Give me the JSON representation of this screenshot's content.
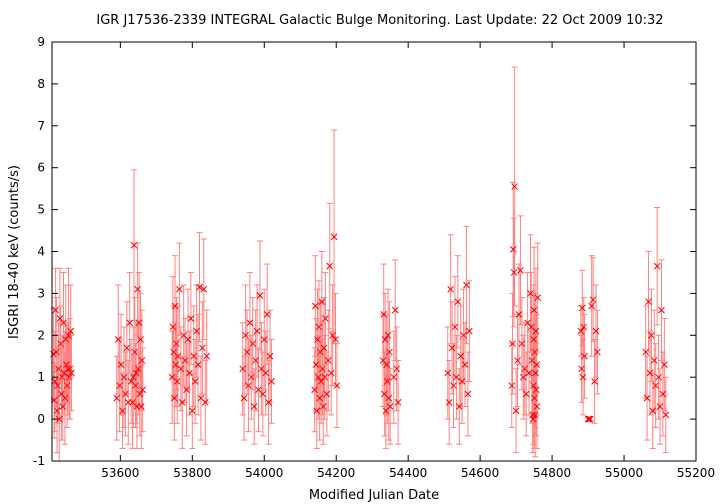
{
  "chart_data": {
    "type": "scatter",
    "title": "IGR J17536-2339    INTEGRAL Galactic Bulge Monitoring.  Last Update: 22 Oct 2009 10:32",
    "xlabel": "Modified Julian Date",
    "ylabel": "ISGRI 18-40 keV (counts/s)",
    "xlim": [
      53410,
      55200
    ],
    "ylim": [
      -1,
      9
    ],
    "x_ticks": [
      53600,
      53800,
      54000,
      54200,
      54400,
      54600,
      54800,
      55000,
      55200
    ],
    "y_ticks": [
      -1,
      0,
      1,
      2,
      3,
      4,
      5,
      6,
      7,
      8,
      9
    ],
    "grid": false,
    "legend": "none",
    "marker": "x",
    "color": "#ff0000",
    "error_color": "#ff8080",
    "points": [
      {
        "x": 53414,
        "y": 1.55,
        "e": 1.1
      },
      {
        "x": 53416,
        "y": 0.45,
        "e": 0.9
      },
      {
        "x": 53418,
        "y": 0.9,
        "e": 1.2
      },
      {
        "x": 53420,
        "y": 2.6,
        "e": 1.0
      },
      {
        "x": 53422,
        "y": 1.6,
        "e": 1.3
      },
      {
        "x": 53424,
        "y": 0.2,
        "e": 1.0
      },
      {
        "x": 53426,
        "y": 0.8,
        "e": 0.9
      },
      {
        "x": 53428,
        "y": 1.2,
        "e": 1.1
      },
      {
        "x": 53430,
        "y": 0.0,
        "e": 1.0
      },
      {
        "x": 53432,
        "y": 2.4,
        "e": 1.2
      },
      {
        "x": 53434,
        "y": 1.8,
        "e": 0.9
      },
      {
        "x": 53436,
        "y": 0.6,
        "e": 1.1
      },
      {
        "x": 53438,
        "y": 1.0,
        "e": 1.0
      },
      {
        "x": 53440,
        "y": 0.3,
        "e": 0.8
      },
      {
        "x": 53442,
        "y": 2.3,
        "e": 1.2
      },
      {
        "x": 53444,
        "y": 1.1,
        "e": 1.0
      },
      {
        "x": 53446,
        "y": 0.5,
        "e": 1.1
      },
      {
        "x": 53448,
        "y": 1.9,
        "e": 1.3
      },
      {
        "x": 53450,
        "y": 1.3,
        "e": 0.9
      },
      {
        "x": 53452,
        "y": 0.8,
        "e": 1.0
      },
      {
        "x": 53454,
        "y": 1.2,
        "e": 1.1
      },
      {
        "x": 53456,
        "y": 2.0,
        "e": 1.6
      },
      {
        "x": 53458,
        "y": 1.0,
        "e": 1.0
      },
      {
        "x": 53460,
        "y": 1.2,
        "e": 1.2
      },
      {
        "x": 53462,
        "y": 2.1,
        "e": 1.1
      },
      {
        "x": 53464,
        "y": 1.1,
        "e": 0.9
      },
      {
        "x": 53590,
        "y": 0.5,
        "e": 1.0
      },
      {
        "x": 53594,
        "y": 1.9,
        "e": 1.3
      },
      {
        "x": 53598,
        "y": 0.8,
        "e": 1.1
      },
      {
        "x": 53602,
        "y": 1.3,
        "e": 1.2
      },
      {
        "x": 53606,
        "y": 0.2,
        "e": 0.9
      },
      {
        "x": 53610,
        "y": 1.0,
        "e": 1.2
      },
      {
        "x": 53614,
        "y": 0.6,
        "e": 1.0
      },
      {
        "x": 53618,
        "y": 1.7,
        "e": 1.1
      },
      {
        "x": 53622,
        "y": 0.4,
        "e": 1.0
      },
      {
        "x": 53626,
        "y": 2.3,
        "e": 1.2
      },
      {
        "x": 53630,
        "y": 0.9,
        "e": 1.0
      },
      {
        "x": 53634,
        "y": 0.4,
        "e": 1.1
      },
      {
        "x": 53636,
        "y": 1.0,
        "e": 1.2
      },
      {
        "x": 53638,
        "y": 4.15,
        "e": 1.8
      },
      {
        "x": 53640,
        "y": 1.6,
        "e": 1.3
      },
      {
        "x": 53642,
        "y": 0.8,
        "e": 1.0
      },
      {
        "x": 53644,
        "y": 1.1,
        "e": 1.2
      },
      {
        "x": 53646,
        "y": 0.3,
        "e": 1.0
      },
      {
        "x": 53648,
        "y": 3.1,
        "e": 1.1
      },
      {
        "x": 53650,
        "y": 1.2,
        "e": 1.1
      },
      {
        "x": 53652,
        "y": 2.3,
        "e": 1.2
      },
      {
        "x": 53654,
        "y": 0.6,
        "e": 1.0
      },
      {
        "x": 53656,
        "y": 1.9,
        "e": 1.1
      },
      {
        "x": 53658,
        "y": 0.3,
        "e": 1.0
      },
      {
        "x": 53660,
        "y": 1.4,
        "e": 1.2
      },
      {
        "x": 53662,
        "y": 0.7,
        "e": 1.0
      },
      {
        "x": 53744,
        "y": 1.0,
        "e": 1.1
      },
      {
        "x": 53746,
        "y": 2.2,
        "e": 1.2
      },
      {
        "x": 53748,
        "y": 1.6,
        "e": 1.1
      },
      {
        "x": 53750,
        "y": 0.5,
        "e": 1.0
      },
      {
        "x": 53752,
        "y": 2.7,
        "e": 1.2
      },
      {
        "x": 53754,
        "y": 1.3,
        "e": 1.0
      },
      {
        "x": 53756,
        "y": 1.8,
        "e": 1.1
      },
      {
        "x": 53758,
        "y": 0.9,
        "e": 1.0
      },
      {
        "x": 53760,
        "y": 1.5,
        "e": 1.2
      },
      {
        "x": 53764,
        "y": 3.1,
        "e": 1.1
      },
      {
        "x": 53768,
        "y": 1.2,
        "e": 1.0
      },
      {
        "x": 53772,
        "y": 0.4,
        "e": 1.1
      },
      {
        "x": 53776,
        "y": 2.0,
        "e": 1.2
      },
      {
        "x": 53780,
        "y": 1.4,
        "e": 1.0
      },
      {
        "x": 53784,
        "y": 0.7,
        "e": 1.1
      },
      {
        "x": 53788,
        "y": 1.9,
        "e": 1.2
      },
      {
        "x": 53792,
        "y": 1.1,
        "e": 1.0
      },
      {
        "x": 53796,
        "y": 2.4,
        "e": 1.1
      },
      {
        "x": 53800,
        "y": 0.2,
        "e": 0.9
      },
      {
        "x": 53804,
        "y": 1.5,
        "e": 1.2
      },
      {
        "x": 53808,
        "y": 0.9,
        "e": 1.0
      },
      {
        "x": 53812,
        "y": 2.1,
        "e": 1.1
      },
      {
        "x": 53816,
        "y": 1.3,
        "e": 1.2
      },
      {
        "x": 53820,
        "y": 3.15,
        "e": 1.3
      },
      {
        "x": 53824,
        "y": 0.5,
        "e": 1.0
      },
      {
        "x": 53828,
        "y": 1.7,
        "e": 1.1
      },
      {
        "x": 53832,
        "y": 3.1,
        "e": 1.2
      },
      {
        "x": 53836,
        "y": 0.4,
        "e": 1.0
      },
      {
        "x": 53840,
        "y": 1.5,
        "e": 1.1
      },
      {
        "x": 53940,
        "y": 1.2,
        "e": 1.1
      },
      {
        "x": 53944,
        "y": 0.5,
        "e": 1.0
      },
      {
        "x": 53948,
        "y": 2.0,
        "e": 1.2
      },
      {
        "x": 53952,
        "y": 1.6,
        "e": 1.0
      },
      {
        "x": 53956,
        "y": 0.8,
        "e": 1.1
      },
      {
        "x": 53960,
        "y": 2.3,
        "e": 1.2
      },
      {
        "x": 53964,
        "y": 1.0,
        "e": 1.0
      },
      {
        "x": 53968,
        "y": 1.8,
        "e": 1.1
      },
      {
        "x": 53972,
        "y": 0.3,
        "e": 0.9
      },
      {
        "x": 53976,
        "y": 1.4,
        "e": 1.2
      },
      {
        "x": 53980,
        "y": 2.1,
        "e": 1.1
      },
      {
        "x": 53984,
        "y": 0.7,
        "e": 1.0
      },
      {
        "x": 53988,
        "y": 2.95,
        "e": 1.3
      },
      {
        "x": 53992,
        "y": 1.2,
        "e": 1.1
      },
      {
        "x": 53996,
        "y": 0.6,
        "e": 1.0
      },
      {
        "x": 54000,
        "y": 1.9,
        "e": 1.2
      },
      {
        "x": 54004,
        "y": 1.1,
        "e": 1.0
      },
      {
        "x": 54008,
        "y": 2.5,
        "e": 1.2
      },
      {
        "x": 54012,
        "y": 0.4,
        "e": 1.0
      },
      {
        "x": 54016,
        "y": 1.5,
        "e": 1.1
      },
      {
        "x": 54020,
        "y": 0.9,
        "e": 1.0
      },
      {
        "x": 54140,
        "y": 0.7,
        "e": 1.0
      },
      {
        "x": 54142,
        "y": 2.7,
        "e": 1.2
      },
      {
        "x": 54144,
        "y": 1.3,
        "e": 1.1
      },
      {
        "x": 54146,
        "y": 0.2,
        "e": 0.9
      },
      {
        "x": 54148,
        "y": 1.9,
        "e": 1.2
      },
      {
        "x": 54150,
        "y": 1.0,
        "e": 1.0
      },
      {
        "x": 54152,
        "y": 2.2,
        "e": 1.1
      },
      {
        "x": 54154,
        "y": 0.5,
        "e": 1.0
      },
      {
        "x": 54156,
        "y": 1.6,
        "e": 1.2
      },
      {
        "x": 54158,
        "y": 0.9,
        "e": 1.0
      },
      {
        "x": 54160,
        "y": 2.8,
        "e": 1.2
      },
      {
        "x": 54162,
        "y": 1.2,
        "e": 1.1
      },
      {
        "x": 54164,
        "y": 0.3,
        "e": 0.9
      },
      {
        "x": 54166,
        "y": 1.7,
        "e": 1.2
      },
      {
        "x": 54168,
        "y": 1.0,
        "e": 1.0
      },
      {
        "x": 54170,
        "y": 2.4,
        "e": 1.1
      },
      {
        "x": 54174,
        "y": 0.6,
        "e": 1.0
      },
      {
        "x": 54178,
        "y": 1.4,
        "e": 1.2
      },
      {
        "x": 54182,
        "y": 3.65,
        "e": 1.5
      },
      {
        "x": 54186,
        "y": 1.1,
        "e": 1.0
      },
      {
        "x": 54190,
        "y": 2.0,
        "e": 1.2
      },
      {
        "x": 54194,
        "y": 4.35,
        "e": 2.55
      },
      {
        "x": 54198,
        "y": 1.9,
        "e": 1.1
      },
      {
        "x": 54202,
        "y": 0.8,
        "e": 1.0
      },
      {
        "x": 54330,
        "y": 1.4,
        "e": 1.1
      },
      {
        "x": 54332,
        "y": 2.5,
        "e": 1.2
      },
      {
        "x": 54334,
        "y": 0.6,
        "e": 1.0
      },
      {
        "x": 54336,
        "y": 1.9,
        "e": 1.1
      },
      {
        "x": 54338,
        "y": 0.2,
        "e": 0.9
      },
      {
        "x": 54340,
        "y": 1.3,
        "e": 1.2
      },
      {
        "x": 54342,
        "y": 0.9,
        "e": 1.0
      },
      {
        "x": 54344,
        "y": 2.0,
        "e": 1.1
      },
      {
        "x": 54346,
        "y": 0.5,
        "e": 1.0
      },
      {
        "x": 54348,
        "y": 1.6,
        "e": 1.2
      },
      {
        "x": 54350,
        "y": 0.3,
        "e": 0.9
      },
      {
        "x": 54360,
        "y": 1.0,
        "e": 1.1
      },
      {
        "x": 54364,
        "y": 2.6,
        "e": 1.2
      },
      {
        "x": 54368,
        "y": 1.2,
        "e": 1.0
      },
      {
        "x": 54372,
        "y": 0.4,
        "e": 1.0
      },
      {
        "x": 54510,
        "y": 1.1,
        "e": 1.1
      },
      {
        "x": 54514,
        "y": 0.4,
        "e": 1.0
      },
      {
        "x": 54518,
        "y": 3.1,
        "e": 1.3
      },
      {
        "x": 54522,
        "y": 1.7,
        "e": 1.1
      },
      {
        "x": 54526,
        "y": 0.8,
        "e": 1.0
      },
      {
        "x": 54530,
        "y": 2.2,
        "e": 1.2
      },
      {
        "x": 54534,
        "y": 1.0,
        "e": 1.0
      },
      {
        "x": 54538,
        "y": 2.8,
        "e": 1.1
      },
      {
        "x": 54542,
        "y": 0.3,
        "e": 0.9
      },
      {
        "x": 54546,
        "y": 1.5,
        "e": 1.2
      },
      {
        "x": 54550,
        "y": 0.9,
        "e": 1.0
      },
      {
        "x": 54554,
        "y": 2.0,
        "e": 1.1
      },
      {
        "x": 54558,
        "y": 1.3,
        "e": 1.0
      },
      {
        "x": 54562,
        "y": 3.2,
        "e": 1.4
      },
      {
        "x": 54566,
        "y": 0.6,
        "e": 1.0
      },
      {
        "x": 54570,
        "y": 2.1,
        "e": 1.2
      },
      {
        "x": 54688,
        "y": 0.8,
        "e": 1.0
      },
      {
        "x": 54690,
        "y": 1.8,
        "e": 1.2
      },
      {
        "x": 54692,
        "y": 4.05,
        "e": 1.6
      },
      {
        "x": 54694,
        "y": 3.5,
        "e": 1.3
      },
      {
        "x": 54696,
        "y": 5.55,
        "e": 2.85
      },
      {
        "x": 54700,
        "y": 0.2,
        "e": 1.0
      },
      {
        "x": 54704,
        "y": 1.4,
        "e": 1.1
      },
      {
        "x": 54708,
        "y": 2.5,
        "e": 1.2
      },
      {
        "x": 54712,
        "y": 3.55,
        "e": 1.3
      },
      {
        "x": 54716,
        "y": 1.8,
        "e": 1.1
      },
      {
        "x": 54720,
        "y": 1.0,
        "e": 1.0
      },
      {
        "x": 54724,
        "y": 1.2,
        "e": 1.1
      },
      {
        "x": 54728,
        "y": 0.6,
        "e": 1.0
      },
      {
        "x": 54732,
        "y": 2.3,
        "e": 1.2
      },
      {
        "x": 54736,
        "y": 1.1,
        "e": 1.0
      },
      {
        "x": 54740,
        "y": 3.0,
        "e": 1.4
      },
      {
        "x": 54742,
        "y": 2.2,
        "e": 1.3
      },
      {
        "x": 54744,
        "y": 1.4,
        "e": 1.5
      },
      {
        "x": 54746,
        "y": 0.1,
        "e": 0.9
      },
      {
        "x": 54747,
        "y": 0.0,
        "e": 0.8
      },
      {
        "x": 54748,
        "y": 0.8,
        "e": 1.4
      },
      {
        "x": 54749,
        "y": 1.9,
        "e": 1.3
      },
      {
        "x": 54750,
        "y": 2.6,
        "e": 1.5
      },
      {
        "x": 54751,
        "y": 0.5,
        "e": 1.2
      },
      {
        "x": 54752,
        "y": 1.6,
        "e": 1.4
      },
      {
        "x": 54753,
        "y": 0.1,
        "e": 1.0
      },
      {
        "x": 54754,
        "y": 1.1,
        "e": 1.3
      },
      {
        "x": 54755,
        "y": 2.1,
        "e": 1.5
      },
      {
        "x": 54756,
        "y": 0.7,
        "e": 1.1
      },
      {
        "x": 54757,
        "y": 1.3,
        "e": 1.2
      },
      {
        "x": 54758,
        "y": 0.3,
        "e": 1.0
      },
      {
        "x": 54760,
        "y": 2.9,
        "e": 1.3
      },
      {
        "x": 54880,
        "y": 2.1,
        "e": 0.6
      },
      {
        "x": 54882,
        "y": 1.2,
        "e": 0.8
      },
      {
        "x": 54884,
        "y": 2.65,
        "e": 0.9
      },
      {
        "x": 54886,
        "y": 1.0,
        "e": 0.9
      },
      {
        "x": 54888,
        "y": 2.2,
        "e": 0.7
      },
      {
        "x": 54890,
        "y": 1.5,
        "e": 1.0
      },
      {
        "x": 54900,
        "y": 0.0,
        "e": 0.0
      },
      {
        "x": 54903,
        "y": 0.0,
        "e": 0.0
      },
      {
        "x": 54906,
        "y": 0.0,
        "e": 0.0
      },
      {
        "x": 54910,
        "y": 2.7,
        "e": 1.2
      },
      {
        "x": 54914,
        "y": 2.85,
        "e": 1.0
      },
      {
        "x": 54918,
        "y": 0.9,
        "e": 1.0
      },
      {
        "x": 54922,
        "y": 2.1,
        "e": 1.1
      },
      {
        "x": 54926,
        "y": 1.6,
        "e": 1.0
      },
      {
        "x": 55060,
        "y": 1.6,
        "e": 1.1
      },
      {
        "x": 55064,
        "y": 0.5,
        "e": 1.0
      },
      {
        "x": 55068,
        "y": 2.8,
        "e": 1.2
      },
      {
        "x": 55072,
        "y": 1.1,
        "e": 1.0
      },
      {
        "x": 55076,
        "y": 2.0,
        "e": 1.1
      },
      {
        "x": 55080,
        "y": 0.2,
        "e": 0.9
      },
      {
        "x": 55084,
        "y": 1.4,
        "e": 1.2
      },
      {
        "x": 55088,
        "y": 0.8,
        "e": 1.0
      },
      {
        "x": 55092,
        "y": 3.65,
        "e": 1.4
      },
      {
        "x": 55096,
        "y": 1.0,
        "e": 1.0
      },
      {
        "x": 55100,
        "y": 0.3,
        "e": 0.9
      },
      {
        "x": 55104,
        "y": 2.6,
        "e": 1.2
      },
      {
        "x": 55108,
        "y": 0.6,
        "e": 1.0
      },
      {
        "x": 55112,
        "y": 1.3,
        "e": 1.1
      },
      {
        "x": 55116,
        "y": 0.1,
        "e": 0.9
      }
    ]
  }
}
